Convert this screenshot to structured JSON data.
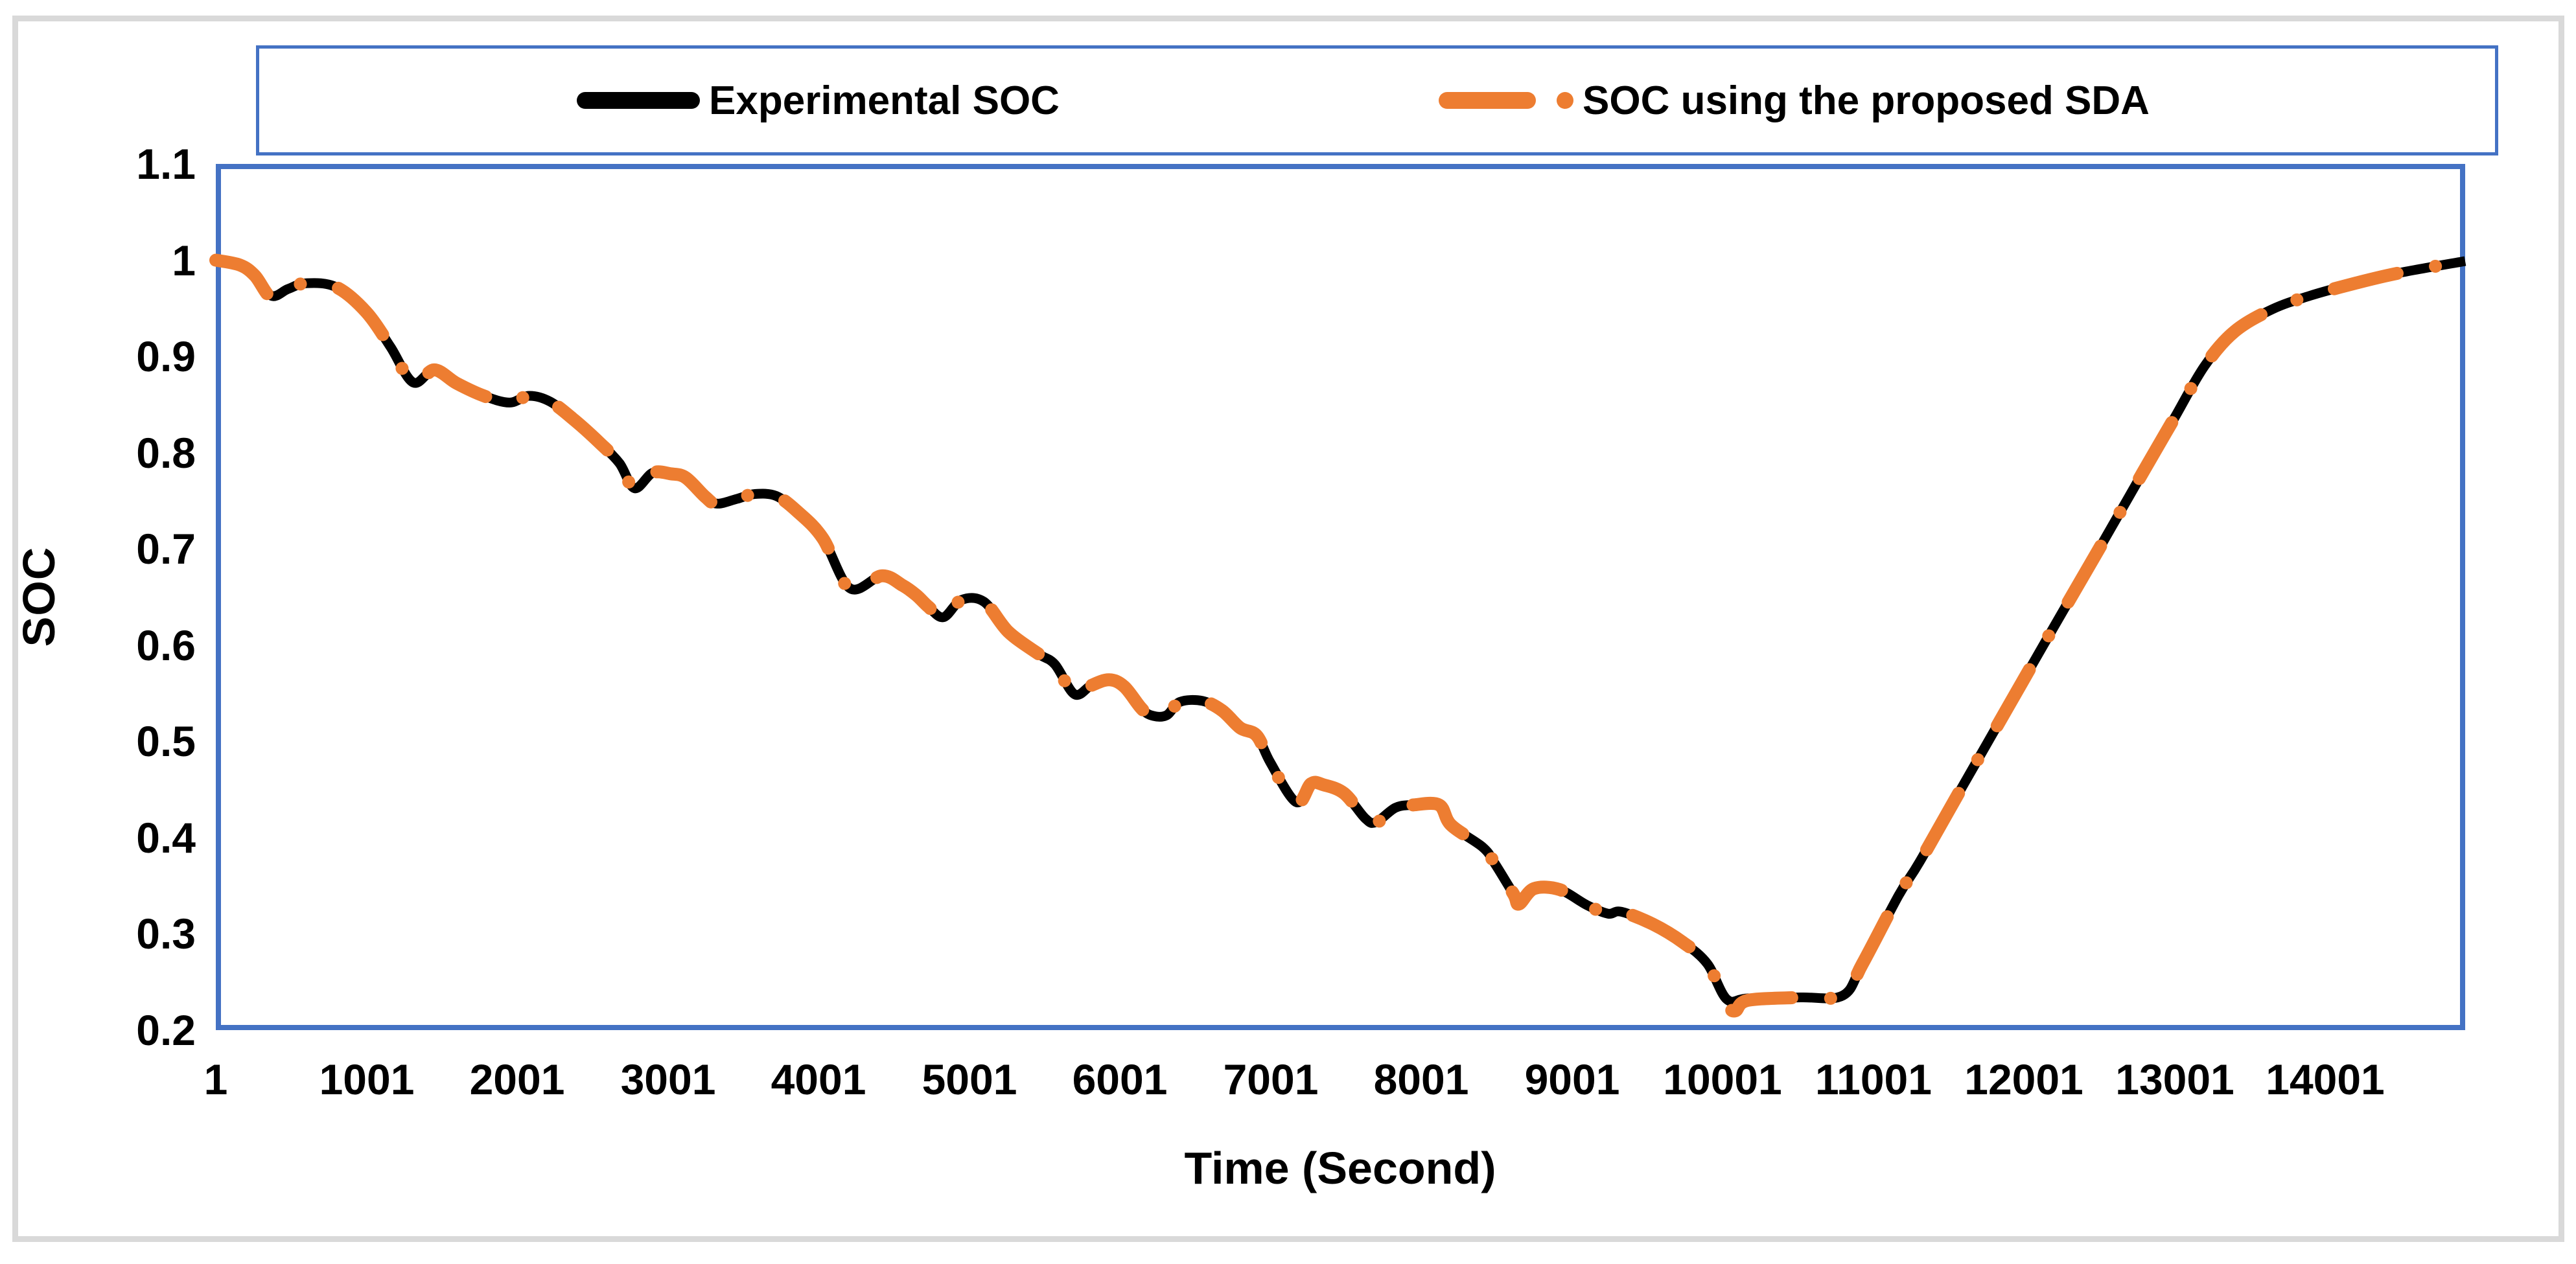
{
  "figure": {
    "x_axis_title": "Time (Second)",
    "y_axis_title": "SOC"
  },
  "legend": {
    "items": [
      {
        "label": "Experimental SOC",
        "color": "#000000",
        "style": "solid"
      },
      {
        "label": "SOC using the proposed SDA",
        "color": "#ED7D31",
        "style": "dash-dot"
      }
    ]
  },
  "colors": {
    "experimental": "#000000",
    "sda": "#ED7D31",
    "axis_border": "#4472C4",
    "figure_frame": "#D9D9D9"
  },
  "chart_data": {
    "type": "line",
    "title": "",
    "xlabel": "Time (Second)",
    "ylabel": "SOC",
    "xlim": [
      1,
      14930
    ],
    "ylim": [
      0.2,
      1.1
    ],
    "x_ticks": [
      1,
      1001,
      2001,
      3001,
      4001,
      5001,
      6001,
      7001,
      8001,
      9001,
      10001,
      11001,
      12001,
      13001,
      14001
    ],
    "y_ticks": [
      1.1,
      1,
      0.9,
      0.8,
      0.7,
      0.6,
      0.5,
      0.4,
      0.3,
      0.2
    ],
    "grid": false,
    "legend_position": "top",
    "series": [
      {
        "name": "Experimental SOC",
        "color": "#000000",
        "style": "solid",
        "points": [
          [
            1,
            1.0
          ],
          [
            160,
            0.995
          ],
          [
            260,
            0.984
          ],
          [
            370,
            0.963
          ],
          [
            480,
            0.97
          ],
          [
            600,
            0.976
          ],
          [
            800,
            0.972
          ],
          [
            1000,
            0.946
          ],
          [
            1160,
            0.91
          ],
          [
            1310,
            0.873
          ],
          [
            1450,
            0.886
          ],
          [
            1600,
            0.872
          ],
          [
            1780,
            0.859
          ],
          [
            1950,
            0.852
          ],
          [
            2080,
            0.859
          ],
          [
            2220,
            0.853
          ],
          [
            2380,
            0.834
          ],
          [
            2550,
            0.81
          ],
          [
            2680,
            0.789
          ],
          [
            2780,
            0.763
          ],
          [
            2900,
            0.779
          ],
          [
            3020,
            0.778
          ],
          [
            3120,
            0.774
          ],
          [
            3250,
            0.754
          ],
          [
            3330,
            0.747
          ],
          [
            3460,
            0.752
          ],
          [
            3580,
            0.757
          ],
          [
            3720,
            0.755
          ],
          [
            3860,
            0.739
          ],
          [
            4030,
            0.711
          ],
          [
            4210,
            0.659
          ],
          [
            4420,
            0.672
          ],
          [
            4560,
            0.662
          ],
          [
            4650,
            0.652
          ],
          [
            4730,
            0.64
          ],
          [
            4830,
            0.629
          ],
          [
            4950,
            0.647
          ],
          [
            5100,
            0.645
          ],
          [
            5260,
            0.614
          ],
          [
            5460,
            0.591
          ],
          [
            5570,
            0.58
          ],
          [
            5700,
            0.549
          ],
          [
            5810,
            0.558
          ],
          [
            5930,
            0.564
          ],
          [
            6030,
            0.557
          ],
          [
            6140,
            0.535
          ],
          [
            6210,
            0.527
          ],
          [
            6310,
            0.527
          ],
          [
            6400,
            0.541
          ],
          [
            6550,
            0.542
          ],
          [
            6680,
            0.532
          ],
          [
            6800,
            0.514
          ],
          [
            6910,
            0.506
          ],
          [
            7000,
            0.478
          ],
          [
            7170,
            0.437
          ],
          [
            7270,
            0.456
          ],
          [
            7350,
            0.455
          ],
          [
            7490,
            0.446
          ],
          [
            7630,
            0.42
          ],
          [
            7700,
            0.416
          ],
          [
            7830,
            0.431
          ],
          [
            7950,
            0.434
          ],
          [
            8120,
            0.434
          ],
          [
            8200,
            0.413
          ],
          [
            8410,
            0.39
          ],
          [
            8490,
            0.373
          ],
          [
            8615,
            0.341
          ],
          [
            8650,
            0.332
          ],
          [
            8750,
            0.347
          ],
          [
            8920,
            0.346
          ],
          [
            9100,
            0.33
          ],
          [
            9240,
            0.321
          ],
          [
            9330,
            0.323
          ],
          [
            9540,
            0.31
          ],
          [
            9740,
            0.291
          ],
          [
            9900,
            0.269
          ],
          [
            10030,
            0.232
          ],
          [
            10170,
            0.233
          ],
          [
            10520,
            0.234
          ],
          [
            10800,
            0.236
          ],
          [
            10930,
            0.269
          ],
          [
            11170,
            0.34
          ],
          [
            11310,
            0.375
          ],
          [
            11600,
            0.455
          ],
          [
            11900,
            0.537
          ],
          [
            12200,
            0.619
          ],
          [
            12500,
            0.7
          ],
          [
            12800,
            0.782
          ],
          [
            13000,
            0.836
          ],
          [
            13200,
            0.89
          ],
          [
            13400,
            0.926
          ],
          [
            13650,
            0.949
          ],
          [
            13900,
            0.963
          ],
          [
            14200,
            0.976
          ],
          [
            14500,
            0.987
          ],
          [
            14930,
            0.999
          ]
        ]
      },
      {
        "name": "SOC using the proposed SDA",
        "color": "#ED7D31",
        "style": "dash-dot",
        "points": [
          [
            1,
            1.0
          ],
          [
            160,
            0.995
          ],
          [
            260,
            0.984
          ],
          [
            370,
            0.961
          ],
          [
            480,
            0.97
          ],
          [
            600,
            0.976
          ],
          [
            800,
            0.972
          ],
          [
            1000,
            0.946
          ],
          [
            1160,
            0.91
          ],
          [
            1310,
            0.872
          ],
          [
            1450,
            0.886
          ],
          [
            1600,
            0.872
          ],
          [
            1780,
            0.859
          ],
          [
            1950,
            0.852
          ],
          [
            2080,
            0.859
          ],
          [
            2220,
            0.853
          ],
          [
            2380,
            0.834
          ],
          [
            2550,
            0.81
          ],
          [
            2680,
            0.789
          ],
          [
            2780,
            0.762
          ],
          [
            2900,
            0.779
          ],
          [
            3020,
            0.778
          ],
          [
            3120,
            0.774
          ],
          [
            3250,
            0.754
          ],
          [
            3330,
            0.746
          ],
          [
            3460,
            0.752
          ],
          [
            3580,
            0.757
          ],
          [
            3720,
            0.755
          ],
          [
            3860,
            0.739
          ],
          [
            4030,
            0.711
          ],
          [
            4210,
            0.658
          ],
          [
            4420,
            0.672
          ],
          [
            4560,
            0.662
          ],
          [
            4650,
            0.652
          ],
          [
            4730,
            0.64
          ],
          [
            4830,
            0.628
          ],
          [
            4950,
            0.647
          ],
          [
            5100,
            0.645
          ],
          [
            5260,
            0.614
          ],
          [
            5460,
            0.591
          ],
          [
            5570,
            0.58
          ],
          [
            5700,
            0.548
          ],
          [
            5810,
            0.558
          ],
          [
            5930,
            0.564
          ],
          [
            6030,
            0.557
          ],
          [
            6140,
            0.535
          ],
          [
            6210,
            0.526
          ],
          [
            6310,
            0.527
          ],
          [
            6400,
            0.541
          ],
          [
            6550,
            0.542
          ],
          [
            6680,
            0.532
          ],
          [
            6800,
            0.514
          ],
          [
            6910,
            0.506
          ],
          [
            7000,
            0.478
          ],
          [
            7170,
            0.436
          ],
          [
            7270,
            0.456
          ],
          [
            7350,
            0.455
          ],
          [
            7490,
            0.446
          ],
          [
            7630,
            0.42
          ],
          [
            7700,
            0.415
          ],
          [
            7830,
            0.431
          ],
          [
            7950,
            0.434
          ],
          [
            8120,
            0.434
          ],
          [
            8200,
            0.413
          ],
          [
            8410,
            0.39
          ],
          [
            8490,
            0.373
          ],
          [
            8615,
            0.341
          ],
          [
            8650,
            0.331
          ],
          [
            8750,
            0.347
          ],
          [
            8920,
            0.346
          ],
          [
            9100,
            0.33
          ],
          [
            9240,
            0.321
          ],
          [
            9330,
            0.323
          ],
          [
            9540,
            0.31
          ],
          [
            9740,
            0.291
          ],
          [
            9900,
            0.269
          ],
          [
            10030,
            0.228
          ],
          [
            10085,
            0.22
          ],
          [
            10170,
            0.231
          ],
          [
            10520,
            0.234
          ],
          [
            10800,
            0.236
          ],
          [
            10930,
            0.269
          ],
          [
            11170,
            0.34
          ],
          [
            11310,
            0.375
          ],
          [
            11600,
            0.455
          ],
          [
            11900,
            0.537
          ],
          [
            12200,
            0.619
          ],
          [
            12500,
            0.7
          ],
          [
            12800,
            0.782
          ],
          [
            13000,
            0.836
          ],
          [
            13200,
            0.89
          ],
          [
            13400,
            0.926
          ],
          [
            13650,
            0.949
          ],
          [
            13900,
            0.963
          ],
          [
            14200,
            0.976
          ],
          [
            14500,
            0.987
          ],
          [
            14930,
            0.999
          ]
        ]
      }
    ]
  }
}
